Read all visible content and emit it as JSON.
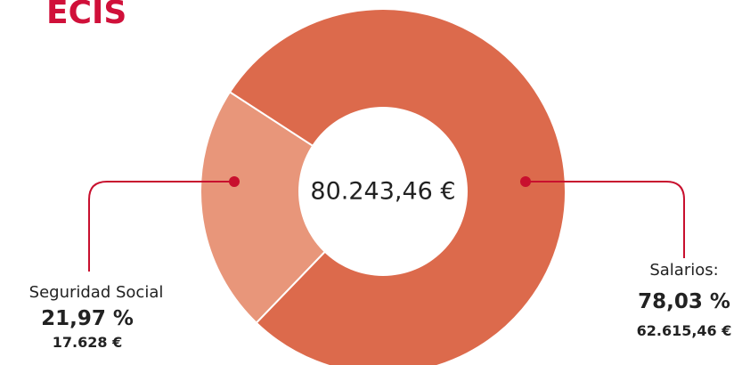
{
  "chart_data": {
    "type": "donut",
    "title": "ECIS",
    "categories": [
      "Seguridad Social",
      "Salarios:"
    ],
    "values": [
      21.97,
      78.03
    ],
    "value_labels": [
      "21,97 %",
      "78,03 %"
    ],
    "amounts": [
      17628,
      62615.46
    ],
    "amount_labels": [
      "17.628 €",
      "62.615,46 €"
    ],
    "colors": [
      "#e8967a",
      "#dc6a4c"
    ],
    "total": 80243.46,
    "total_label": "80.243,46 €"
  }
}
